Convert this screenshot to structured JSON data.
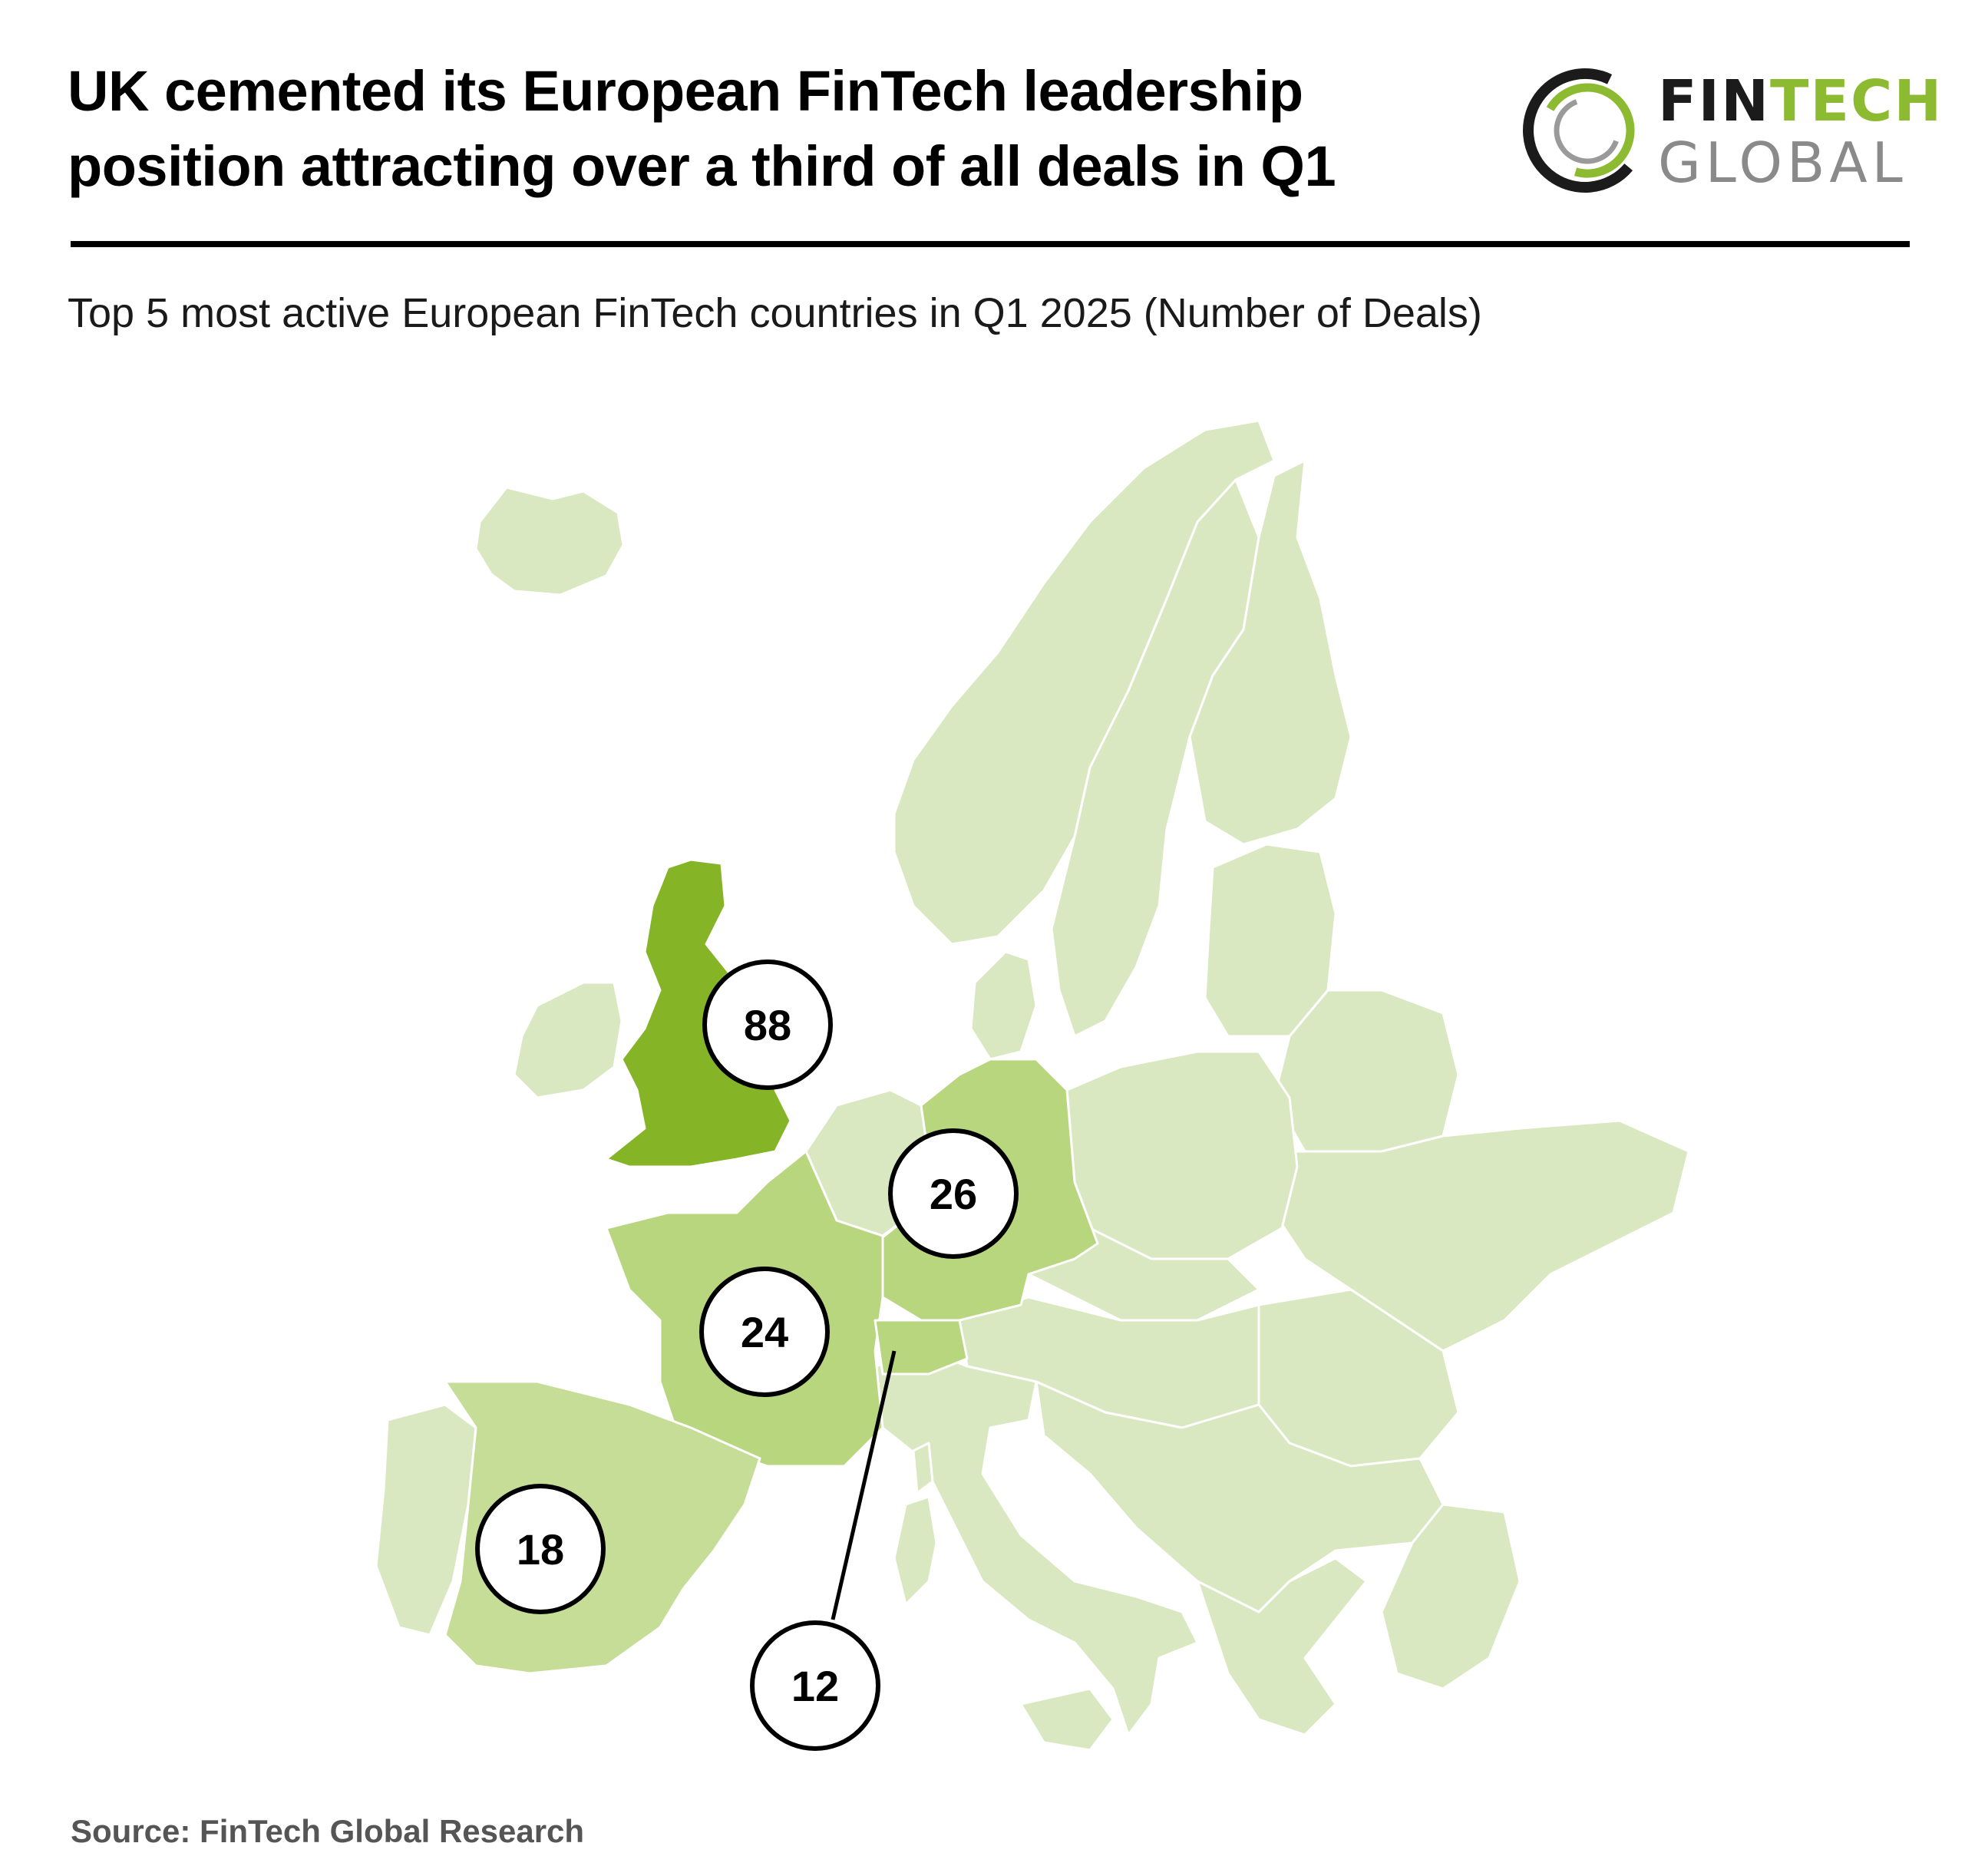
{
  "header": {
    "title_line1": "UK cemented its European FinTech leadership",
    "title_line2": "position attracting over a third of all deals in Q1",
    "subtitle": "Top 5 most active European FinTech countries in Q1 2025 (Number of Deals)"
  },
  "logo": {
    "word_fin": "FIN",
    "word_tech": "TECH",
    "word_global": "GLOBAL",
    "icon": "ring-logo-icon"
  },
  "colors": {
    "uk": "#85b527",
    "top5": "#b7d67e",
    "other": "#d9e8c0",
    "border": "#ffffff",
    "logo_green": "#8cba31"
  },
  "map_data": {
    "type": "choropleth",
    "metric": "Number of Deals",
    "countries": [
      {
        "name": "UK",
        "value": 88
      },
      {
        "name": "Germany",
        "value": 26
      },
      {
        "name": "France",
        "value": 24
      },
      {
        "name": "Spain",
        "value": 18
      },
      {
        "name": "Switzerland",
        "value": 12
      }
    ]
  },
  "footer": {
    "source": "Source: FinTech Global Research"
  }
}
